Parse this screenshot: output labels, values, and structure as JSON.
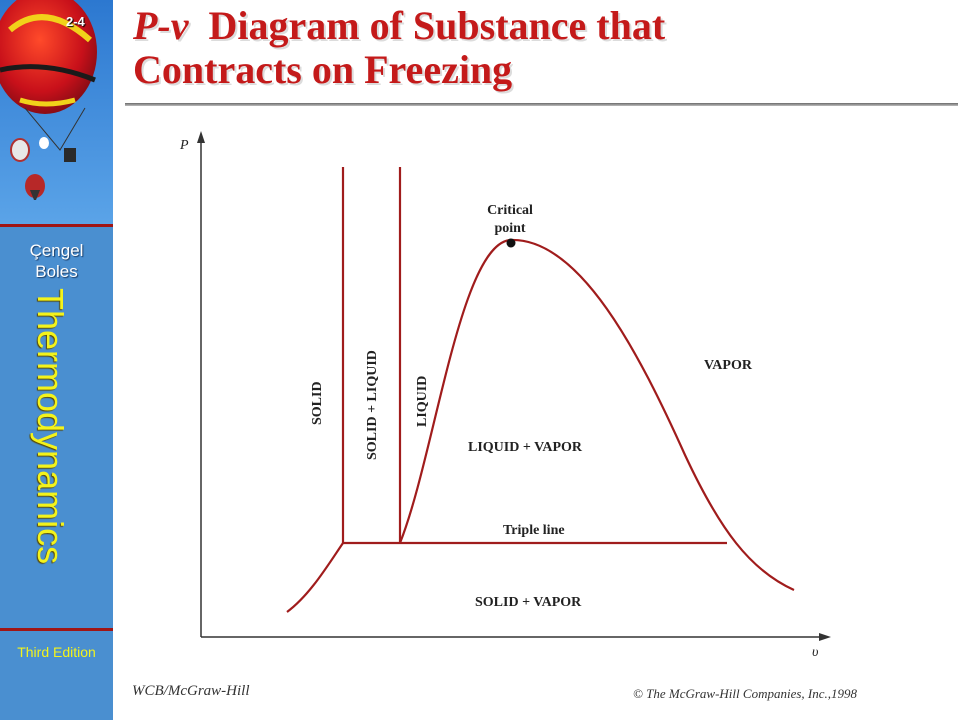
{
  "slide_number": "2-4",
  "title": {
    "symbol": "P-v",
    "line1_rest": "Diagram of Substance that",
    "line2": "Contracts on Freezing"
  },
  "sidebar": {
    "author1": "Çengel",
    "author2": "Boles",
    "subject_part1": "Thermo",
    "subject_part2": "dynamics",
    "edition": "Third Edition"
  },
  "diagram": {
    "y_axis_label": "P",
    "x_axis_label": "υ",
    "critical_point_line1": "Critical",
    "critical_point_line2": "point",
    "solid": "SOLID",
    "solid_liquid": "SOLID + LIQUID",
    "liquid": "LIQUID",
    "vapor": "VAPOR",
    "liquid_vapor": "LIQUID + VAPOR",
    "triple_line": "Triple line",
    "solid_vapor": "SOLID + VAPOR",
    "curve_color": "#a01c1c"
  },
  "footer": {
    "publisher": "WCB/McGraw-Hill",
    "copyright": "© The McGraw-Hill Companies, Inc.,1998"
  }
}
